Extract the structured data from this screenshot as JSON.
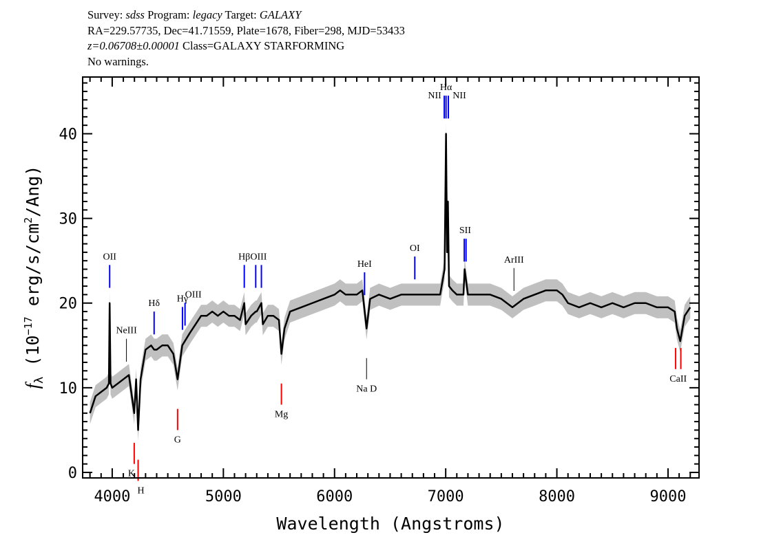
{
  "header": {
    "line1": {
      "survey_label": "Survey:",
      "survey": "sdss",
      "program_label": "Program:",
      "program": "legacy",
      "target_label": "Target:",
      "target": "GALAXY"
    },
    "line2": "RA=229.57735, Dec=41.71559, Plate=1678, Fiber=298, MJD=53433",
    "line3": {
      "redshift": "z=0.06708±0.00001",
      "class": "Class=GALAXY STARFORMING"
    },
    "line4": "No warnings."
  },
  "chart_data": {
    "type": "line",
    "title": "",
    "xlabel": "Wavelength (Angstroms)",
    "ylabel": "f_λ (10^-17 erg/s/cm^2/Ang)",
    "ylabel_parts": {
      "f": "f",
      "sub": "λ",
      "pre": " (10",
      "exp1": "−17",
      "mid": " erg/s/cm",
      "exp2": "2",
      "post": "/Ang)"
    },
    "xlim": [
      3734,
      9279
    ],
    "ylim": [
      -0.65,
      46.7
    ],
    "xticks": [
      4000,
      5000,
      6000,
      7000,
      8000,
      9000
    ],
    "xtick_labels": [
      "4000",
      "5000",
      "6000",
      "7000",
      "8000",
      "9000"
    ],
    "yticks": [
      0,
      10,
      20,
      30,
      40
    ],
    "ytick_labels": [
      "0",
      "10",
      "20",
      "30",
      "40"
    ],
    "grid": false,
    "colors": {
      "flux": "#000000",
      "error_band": "#c0c0c0",
      "emission": "#0000ff",
      "absorption": "#ff0000",
      "other": "#000000"
    },
    "series": [
      {
        "x": [
          3800,
          3850,
          3900,
          3950,
          3970,
          3977,
          3985,
          4000,
          4050,
          4100,
          4150,
          4198,
          4215,
          4233,
          4255,
          4300,
          4350,
          4377,
          4400,
          4450,
          4500,
          4550,
          4588,
          4630,
          4700,
          4750,
          4800,
          4850,
          4900,
          4950,
          5000,
          5050,
          5100,
          5150,
          5188,
          5200,
          5250,
          5291,
          5300,
          5342,
          5355,
          5400,
          5450,
          5500,
          5522,
          5550,
          5600,
          5700,
          5800,
          5900,
          6000,
          6050,
          6100,
          6200,
          6250,
          6288,
          6320,
          6400,
          6500,
          6600,
          6700,
          6800,
          6900,
          6950,
          6990,
          7003,
          7012,
          7020,
          7030,
          7060,
          7100,
          7160,
          7170,
          7180,
          7200,
          7300,
          7400,
          7500,
          7600,
          7700,
          7800,
          7900,
          8000,
          8050,
          8100,
          8200,
          8300,
          8400,
          8500,
          8600,
          8700,
          8800,
          8900,
          9000,
          9060,
          9080,
          9110,
          9150,
          9200
        ],
        "y": [
          7,
          9,
          9.5,
          10,
          10.5,
          20,
          10.5,
          10,
          10.5,
          11,
          11.5,
          7,
          11,
          5,
          11,
          14.5,
          15,
          14.5,
          14.5,
          15,
          15,
          14,
          11,
          15,
          16.5,
          17.5,
          18.5,
          18.5,
          19,
          18.5,
          19,
          18.5,
          18.5,
          18,
          20,
          17.5,
          18.5,
          19,
          19,
          20,
          17.5,
          18.5,
          18.5,
          18,
          14,
          17,
          19,
          19.5,
          20,
          20.5,
          21,
          21.5,
          21,
          21,
          21.5,
          17,
          20.5,
          21,
          20.5,
          21,
          21,
          21,
          21,
          21,
          24,
          40,
          26,
          32,
          22,
          21.5,
          21,
          21,
          24,
          23,
          21,
          21,
          21,
          20.5,
          19.5,
          20.5,
          21,
          21.5,
          21.5,
          21,
          20,
          19.5,
          20,
          19.5,
          20,
          19.5,
          20,
          20,
          19.5,
          19.5,
          19,
          17,
          15.5,
          18.5,
          19.5
        ]
      }
    ],
    "annotations": [
      {
        "label": "OII",
        "wavelength": 3977,
        "kind": "emission",
        "side": "top"
      },
      {
        "label": "NeIII",
        "wavelength": 4128,
        "kind": "other",
        "side": "top"
      },
      {
        "label": "Hδ",
        "wavelength": 4377,
        "kind": "emission",
        "side": "top"
      },
      {
        "label": "Hγ",
        "wavelength": 4632,
        "kind": "emission",
        "side": "top"
      },
      {
        "label": "OIII",
        "wavelength": 4655,
        "kind": "emission",
        "side": "top"
      },
      {
        "label": "Hβ",
        "wavelength": 5188,
        "kind": "emission",
        "side": "top"
      },
      {
        "label": "OIII",
        "wavelength": 5291,
        "kind": "emission",
        "side": "top",
        "pair": 5342
      },
      {
        "label": "HeI",
        "wavelength": 6270,
        "kind": "emission",
        "side": "top"
      },
      {
        "label": "OI",
        "wavelength": 6722,
        "kind": "emission",
        "side": "top"
      },
      {
        "label": "NII",
        "wavelength": 6987,
        "kind": "emission",
        "side": "top"
      },
      {
        "label": "Hα",
        "wavelength": 7003,
        "kind": "emission",
        "side": "top"
      },
      {
        "label": "NII",
        "wavelength": 7024,
        "kind": "emission",
        "side": "top"
      },
      {
        "label": "SII",
        "wavelength": 7167,
        "kind": "emission",
        "side": "top",
        "pair": 7183
      },
      {
        "label": "ArIII",
        "wavelength": 7614,
        "kind": "other",
        "side": "top"
      },
      {
        "label": "K",
        "wavelength": 4198,
        "kind": "absorption",
        "side": "bottom"
      },
      {
        "label": "H",
        "wavelength": 4233,
        "kind": "absorption",
        "side": "bottom"
      },
      {
        "label": "G",
        "wavelength": 4588,
        "kind": "absorption",
        "side": "bottom"
      },
      {
        "label": "Mg",
        "wavelength": 5522,
        "kind": "absorption",
        "side": "bottom"
      },
      {
        "label": "Na D",
        "wavelength": 6288,
        "kind": "other",
        "side": "bottom"
      },
      {
        "label": "CaII",
        "wavelength": 9068,
        "kind": "absorption",
        "side": "bottom",
        "pair": 9115
      }
    ]
  }
}
